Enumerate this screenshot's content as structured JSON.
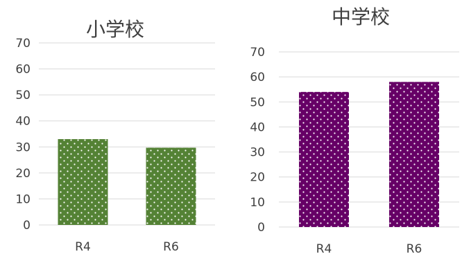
{
  "chart_data": [
    {
      "type": "bar",
      "title": "小学校",
      "categories": [
        "R4",
        "R6"
      ],
      "values": [
        33,
        29.7
      ],
      "ylim": [
        0,
        70
      ],
      "yticks": [
        0,
        10,
        20,
        30,
        40,
        50,
        60,
        70
      ],
      "grid": true,
      "bar_color": "#548235",
      "pattern": "white-dots"
    },
    {
      "type": "bar",
      "title": "中学校",
      "categories": [
        "R4",
        "R6"
      ],
      "values": [
        54,
        58
      ],
      "ylim": [
        0,
        70
      ],
      "yticks": [
        0,
        10,
        20,
        30,
        40,
        50,
        60,
        70
      ],
      "grid": true,
      "bar_color": "#660066",
      "pattern": "white-dots"
    }
  ]
}
